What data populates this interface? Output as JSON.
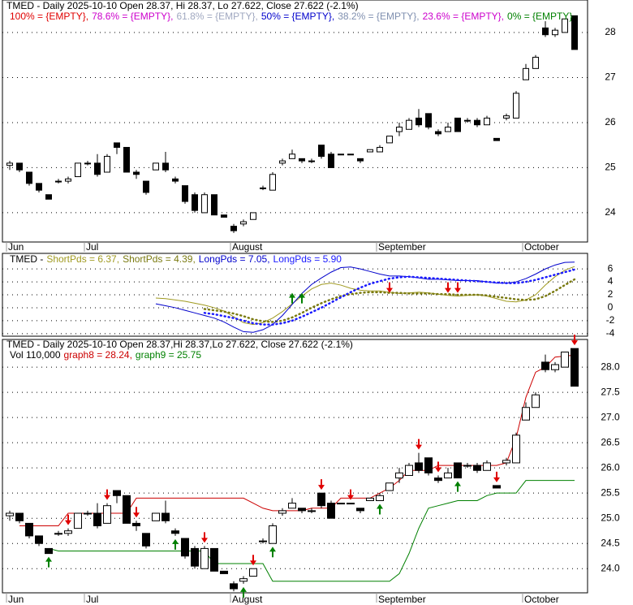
{
  "chart_data": [
    {
      "type": "candlestick",
      "title": "TMED - Daily 2025-10-10 Open 28.37, Hi 28.37, Lo 27.622, Close 27.622 (-2.1%)",
      "legend": [
        {
          "text": "100% = {EMPTY},",
          "color": "#e00000"
        },
        {
          "text": "78.6% = {EMPTY},",
          "color": "#cc00cc"
        },
        {
          "text": "61.8% = {EMPTY},",
          "color": "#a0a8c0"
        },
        {
          "text": "50% = {EMPTY},",
          "color": "#0000cc"
        },
        {
          "text": "38.2% = {EMPTY},",
          "color": "#8090b0"
        },
        {
          "text": "23.6% = {EMPTY},",
          "color": "#cc00cc"
        },
        {
          "text": "0% = {EMPTY}",
          "color": "#008000"
        }
      ],
      "categories": [
        "Jun",
        null,
        null,
        null,
        null,
        null,
        null,
        null,
        "Jul",
        null,
        null,
        null,
        null,
        null,
        null,
        null,
        null,
        null,
        null,
        null,
        null,
        null,
        null,
        "August",
        null,
        null,
        null,
        null,
        null,
        null,
        null,
        null,
        null,
        null,
        null,
        null,
        null,
        null,
        "September",
        null,
        null,
        null,
        null,
        null,
        null,
        null,
        null,
        null,
        null,
        null,
        null,
        null,
        null,
        "October",
        null,
        null,
        null,
        null,
        null
      ],
      "ohlc": [
        [
          25.05,
          25.15,
          24.95,
          25.1
        ],
        [
          25.1,
          25.1,
          24.9,
          24.95
        ],
        [
          24.9,
          24.9,
          24.6,
          24.65
        ],
        [
          24.65,
          24.65,
          24.45,
          24.5
        ],
        [
          24.4,
          24.4,
          24.3,
          24.3
        ],
        [
          24.7,
          24.75,
          24.65,
          24.7
        ],
        [
          24.7,
          24.8,
          24.65,
          24.75
        ],
        [
          24.8,
          25.1,
          24.8,
          25.1
        ],
        [
          25.1,
          25.15,
          25.05,
          25.1
        ],
        [
          25.1,
          25.3,
          24.8,
          24.85
        ],
        [
          24.9,
          25.3,
          24.9,
          25.25
        ],
        [
          25.55,
          25.55,
          25.3,
          25.45
        ],
        [
          25.45,
          25.45,
          24.9,
          24.9
        ],
        [
          24.9,
          24.95,
          24.75,
          24.85
        ],
        [
          24.7,
          24.7,
          24.4,
          24.45
        ],
        [
          24.95,
          25.1,
          24.95,
          25.1
        ],
        [
          25.1,
          25.35,
          24.9,
          24.95
        ],
        [
          24.75,
          24.8,
          24.65,
          24.7
        ],
        [
          24.6,
          24.6,
          24.2,
          24.25
        ],
        [
          24.4,
          24.45,
          24.0,
          24.05
        ],
        [
          24.0,
          24.45,
          24.0,
          24.4
        ],
        [
          24.4,
          24.4,
          23.95,
          23.95
        ],
        [
          23.95,
          23.95,
          23.9,
          23.9
        ],
        [
          23.7,
          23.75,
          23.55,
          23.6
        ],
        [
          23.75,
          23.85,
          23.7,
          23.8
        ],
        [
          23.85,
          24.0,
          23.85,
          24.0
        ],
        [
          24.55,
          24.6,
          24.5,
          24.55
        ],
        [
          24.5,
          24.9,
          24.5,
          24.85
        ],
        [
          25.1,
          25.2,
          25.05,
          25.15
        ],
        [
          25.2,
          25.4,
          25.2,
          25.3
        ],
        [
          25.2,
          25.2,
          25.1,
          25.15
        ],
        [
          25.15,
          25.2,
          25.1,
          25.15
        ],
        [
          25.5,
          25.5,
          25.2,
          25.25
        ],
        [
          25.3,
          25.35,
          25.0,
          25.0
        ],
        [
          25.3,
          25.3,
          25.3,
          25.3
        ],
        [
          25.3,
          25.3,
          25.28,
          25.3
        ],
        [
          25.2,
          25.2,
          25.1,
          25.15
        ],
        [
          25.35,
          25.4,
          25.35,
          25.4
        ],
        [
          25.35,
          25.5,
          25.35,
          25.45
        ],
        [
          25.55,
          25.7,
          25.55,
          25.7
        ],
        [
          25.8,
          26.0,
          25.7,
          25.9
        ],
        [
          25.85,
          26.1,
          25.85,
          26.05
        ],
        [
          26.1,
          26.3,
          25.9,
          25.95
        ],
        [
          26.2,
          26.2,
          25.85,
          25.9
        ],
        [
          25.8,
          25.85,
          25.7,
          25.75
        ],
        [
          25.8,
          26.0,
          25.8,
          25.9
        ],
        [
          26.1,
          26.1,
          25.8,
          25.8
        ],
        [
          26.05,
          26.1,
          26.0,
          26.05
        ],
        [
          26.05,
          26.1,
          25.9,
          25.95
        ],
        [
          25.95,
          26.15,
          25.95,
          26.1
        ],
        [
          25.65,
          25.65,
          25.6,
          25.6
        ],
        [
          26.1,
          26.2,
          26.05,
          26.15
        ],
        [
          26.1,
          26.7,
          26.1,
          26.65
        ],
        [
          26.95,
          27.3,
          26.95,
          27.2
        ],
        [
          27.2,
          27.5,
          27.2,
          27.45
        ],
        [
          28.1,
          28.25,
          27.9,
          27.95
        ],
        [
          27.95,
          28.1,
          27.9,
          28.05
        ],
        [
          28.0,
          28.3,
          28.0,
          28.3
        ],
        [
          28.37,
          28.37,
          27.622,
          27.622
        ]
      ],
      "ylim": [
        23.35,
        28.72
      ],
      "yticks": [
        24,
        25,
        26,
        27,
        28
      ],
      "grid": true
    },
    {
      "type": "line",
      "title": "TMED -",
      "series": [
        {
          "name": "ShortPds = 6.37,",
          "color": "#a09a20",
          "style": "solid",
          "values": [
            null,
            null,
            null,
            null,
            null,
            null,
            null,
            null,
            null,
            null,
            null,
            null,
            null,
            null,
            null,
            1.5,
            1.4,
            1.2,
            1.0,
            0.7,
            0.4,
            0.0,
            -0.5,
            -1.4,
            -2.3,
            -2.6,
            -2.3,
            -1.6,
            -0.6,
            0.6,
            1.8,
            2.9,
            3.6,
            3.8,
            3.5,
            3.0,
            2.7,
            2.6,
            2.6,
            2.4,
            2.2,
            2.3,
            2.4,
            2.3,
            2.1,
            1.9,
            1.8,
            1.9,
            2.0,
            1.8,
            1.4,
            1.0,
            0.9,
            1.2,
            2.0,
            3.5,
            4.8,
            5.8,
            6.37
          ]
        },
        {
          "name": "ShortPds = 4.39,",
          "color": "#7a7a10",
          "style": "dotted",
          "values": [
            null,
            null,
            null,
            null,
            null,
            null,
            null,
            null,
            null,
            null,
            null,
            null,
            null,
            null,
            null,
            null,
            null,
            null,
            null,
            null,
            -0.2,
            -0.4,
            -0.6,
            -0.9,
            -1.3,
            -1.8,
            -2.1,
            -2.2,
            -2.0,
            -1.5,
            -0.8,
            0.0,
            0.7,
            1.3,
            1.8,
            2.1,
            2.3,
            2.4,
            2.4,
            2.3,
            2.3,
            2.2,
            2.2,
            2.2,
            2.1,
            2.1,
            2.0,
            2.0,
            2.0,
            1.9,
            1.7,
            1.5,
            1.3,
            1.2,
            1.3,
            1.8,
            2.6,
            3.5,
            4.39
          ]
        },
        {
          "name": "LongPds = 7.05,",
          "color": "#0000cc",
          "style": "solid",
          "values": [
            null,
            null,
            null,
            null,
            null,
            null,
            null,
            null,
            null,
            null,
            null,
            null,
            null,
            null,
            null,
            0.6,
            0.3,
            0.0,
            -0.4,
            -0.8,
            -1.2,
            -1.6,
            -2.2,
            -3.0,
            -3.7,
            -3.8,
            -3.4,
            -2.6,
            -1.2,
            0.5,
            2.2,
            3.6,
            4.6,
            5.5,
            6.2,
            6.3,
            6.0,
            5.6,
            5.2,
            4.9,
            4.9,
            4.8,
            4.6,
            4.4,
            4.4,
            4.3,
            4.2,
            4.2,
            4.2,
            4.0,
            3.8,
            3.8,
            4.0,
            4.5,
            5.2,
            6.0,
            6.6,
            7.0,
            7.05
          ]
        },
        {
          "name": "LongPds = 5.90",
          "color": "#1a1aff",
          "style": "dotted",
          "values": [
            null,
            null,
            null,
            null,
            null,
            null,
            null,
            null,
            null,
            null,
            null,
            null,
            null,
            null,
            null,
            null,
            null,
            null,
            null,
            null,
            -0.8,
            -1.0,
            -1.3,
            -1.6,
            -2.0,
            -2.4,
            -2.6,
            -2.6,
            -2.4,
            -2.0,
            -1.4,
            -0.7,
            0.0,
            0.8,
            1.6,
            2.4,
            3.1,
            3.7,
            4.1,
            4.5,
            4.7,
            4.8,
            4.7,
            4.6,
            4.5,
            4.4,
            4.3,
            4.2,
            4.1,
            4.0,
            3.9,
            3.8,
            3.8,
            4.0,
            4.3,
            4.7,
            5.1,
            5.5,
            5.9
          ]
        }
      ],
      "buy_signals": [
        29,
        30
      ],
      "sell_signals": [
        39,
        45,
        46
      ],
      "ylim": [
        -4.4,
        8.4
      ],
      "yticks": [
        6,
        4,
        2,
        0,
        -2,
        -4
      ],
      "grid": true
    },
    {
      "type": "candlestick",
      "title": "TMED - Daily 2025-10-10 Open 28.37,Hi 28.37,Lo 27.622, Close 27.622 (-2.1%)",
      "subtitle": "Vol 110,000",
      "series": [
        {
          "name": "graph8 = 28.24,",
          "color": "#cc0000",
          "values": [
            null,
            24.85,
            24.85,
            24.85,
            24.85,
            24.85,
            25.1,
            25.1,
            25.1,
            25.1,
            25.1,
            25.1,
            25.1,
            25.4,
            25.4,
            25.4,
            25.4,
            25.4,
            25.4,
            25.4,
            25.4,
            25.4,
            25.4,
            25.4,
            25.4,
            25.3,
            25.2,
            25.15,
            25.15,
            25.15,
            25.15,
            25.2,
            25.2,
            25.2,
            25.4,
            25.4,
            25.4,
            25.4,
            25.5,
            25.6,
            25.75,
            25.95,
            25.95,
            25.95,
            26.05,
            26.05,
            26.05,
            26.05,
            26.05,
            26.05,
            26.05,
            26.1,
            26.6,
            27.4,
            27.9,
            28.0,
            28.2,
            28.22,
            28.24
          ]
        },
        {
          "name": "graph9 = 25.75",
          "color": "#008000",
          "values": [
            null,
            null,
            null,
            null,
            24.4,
            24.35,
            24.35,
            24.35,
            24.35,
            24.35,
            24.35,
            24.35,
            24.35,
            24.35,
            24.35,
            24.35,
            24.35,
            24.35,
            24.35,
            24.35,
            24.35,
            24.1,
            24.1,
            24.1,
            24.1,
            24.1,
            24.1,
            23.75,
            23.75,
            23.75,
            23.75,
            23.75,
            23.75,
            23.75,
            23.75,
            23.75,
            23.75,
            23.75,
            23.75,
            23.75,
            23.9,
            24.3,
            24.8,
            25.2,
            25.25,
            25.3,
            25.35,
            25.35,
            25.35,
            25.45,
            25.5,
            25.5,
            25.5,
            25.75,
            25.75,
            25.75,
            25.75,
            25.75,
            25.75
          ]
        }
      ],
      "buy_signals": [
        4,
        17,
        24,
        27,
        38,
        46
      ],
      "sell_signals": [
        6,
        10,
        13,
        20,
        25,
        32,
        35,
        42,
        44,
        50,
        58
      ],
      "ylim": [
        23.52,
        28.55
      ],
      "yticks": [
        {
          "value": 24,
          "label": "24.0"
        },
        {
          "value": 24.5,
          "label": "24.5"
        },
        {
          "value": 25,
          "label": "25.0"
        },
        {
          "value": 25.5,
          "label": "25.5"
        },
        {
          "value": 26,
          "label": "26.0"
        },
        {
          "value": 26.5,
          "label": "26.5"
        },
        {
          "value": 27,
          "label": "27.0"
        },
        {
          "value": 27.5,
          "label": "27.5"
        },
        {
          "value": 28,
          "label": "28.0"
        }
      ],
      "grid": true
    }
  ]
}
